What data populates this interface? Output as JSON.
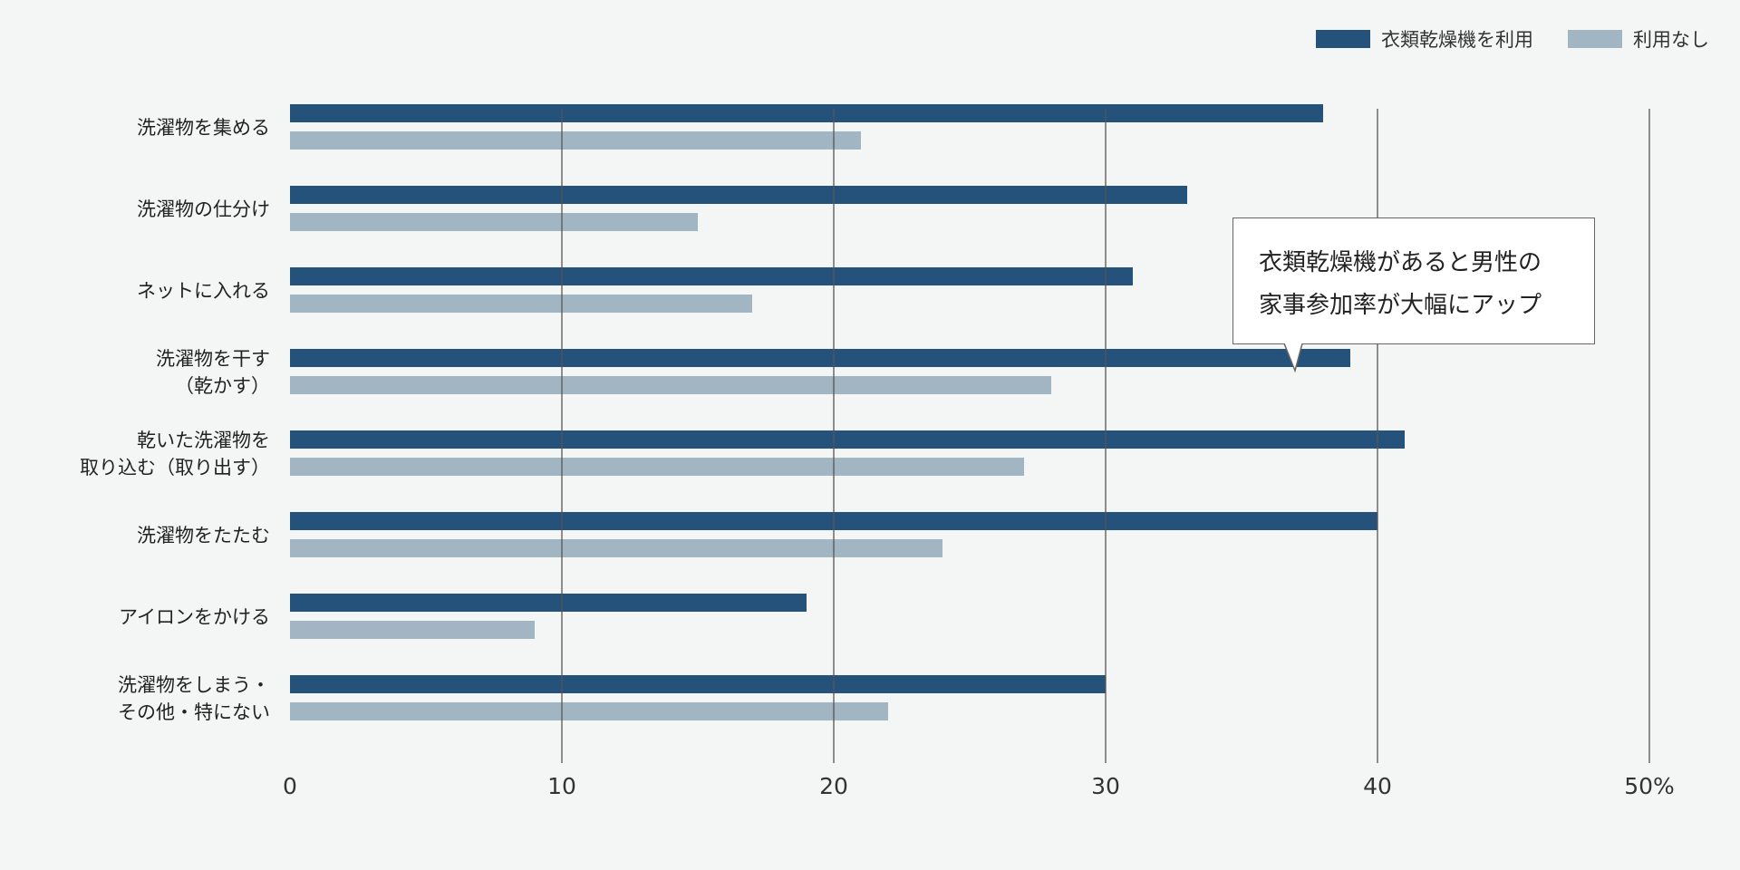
{
  "legend": {
    "series_a": "衣類乾燥機を利用",
    "series_b": "利用なし"
  },
  "callout": {
    "line1": "衣類乾燥機があると男性の",
    "line2": "家事参加率が大幅にアップ"
  },
  "colors": {
    "series_a": "#24527a",
    "series_b": "#a2b5c3",
    "grid": "#555555",
    "background": "#f4f6f5"
  },
  "chart_data": {
    "type": "bar",
    "orientation": "horizontal",
    "categories": [
      [
        "洗濯物を集める"
      ],
      [
        "洗濯物の仕分け"
      ],
      [
        "ネットに入れる"
      ],
      [
        "洗濯物を干す",
        "（乾かす）"
      ],
      [
        "乾いた洗濯物を",
        "取り込む（取り出す）"
      ],
      [
        "洗濯物をたたむ"
      ],
      [
        "アイロンをかける"
      ],
      [
        "洗濯物をしまう・",
        "その他・特にない"
      ]
    ],
    "series": [
      {
        "name": "衣類乾燥機を利用",
        "values": [
          38,
          33,
          31,
          39,
          41,
          40,
          19,
          30
        ]
      },
      {
        "name": "利用なし",
        "values": [
          21,
          15,
          17,
          28,
          27,
          24,
          9,
          22
        ]
      }
    ],
    "xlim": [
      0,
      50
    ],
    "xticks": [
      0,
      10,
      20,
      30,
      40,
      50
    ],
    "xtick_labels": [
      "0",
      "10",
      "20",
      "30",
      "40",
      "50%"
    ],
    "grid": true,
    "legend_position": "top-right"
  }
}
